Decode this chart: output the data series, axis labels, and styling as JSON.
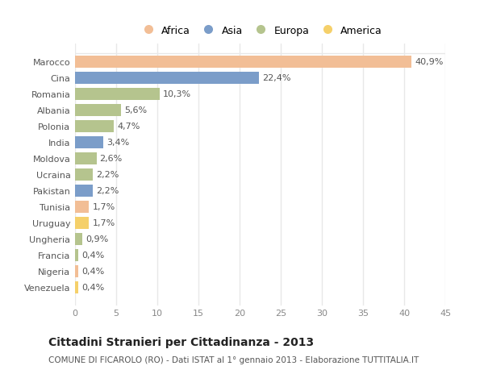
{
  "countries": [
    "Marocco",
    "Cina",
    "Romania",
    "Albania",
    "Polonia",
    "India",
    "Moldova",
    "Ucraina",
    "Pakistan",
    "Tunisia",
    "Uruguay",
    "Ungheria",
    "Francia",
    "Nigeria",
    "Venezuela"
  ],
  "values": [
    40.9,
    22.4,
    10.3,
    5.6,
    4.7,
    3.4,
    2.6,
    2.2,
    2.2,
    1.7,
    1.7,
    0.9,
    0.4,
    0.4,
    0.4
  ],
  "labels": [
    "40,9%",
    "22,4%",
    "10,3%",
    "5,6%",
    "4,7%",
    "3,4%",
    "2,6%",
    "2,2%",
    "2,2%",
    "1,7%",
    "1,7%",
    "0,9%",
    "0,4%",
    "0,4%",
    "0,4%"
  ],
  "colors": [
    "#f2be96",
    "#7b9dc9",
    "#b5c48e",
    "#b5c48e",
    "#b5c48e",
    "#7b9dc9",
    "#b5c48e",
    "#b5c48e",
    "#7b9dc9",
    "#f2be96",
    "#f5d06a",
    "#b5c48e",
    "#b5c48e",
    "#f2be96",
    "#f5d06a"
  ],
  "legend_labels": [
    "Africa",
    "Asia",
    "Europa",
    "America"
  ],
  "legend_colors": [
    "#f2be96",
    "#7b9dc9",
    "#b5c48e",
    "#f5d06a"
  ],
  "title": "Cittadini Stranieri per Cittadinanza - 2013",
  "subtitle": "COMUNE DI FICAROLO (RO) - Dati ISTAT al 1° gennaio 2013 - Elaborazione TUTTITALIA.IT",
  "xlim": [
    0,
    45
  ],
  "xticks": [
    0,
    5,
    10,
    15,
    20,
    25,
    30,
    35,
    40,
    45
  ],
  "background_color": "#ffffff",
  "grid_color": "#e8e8e8",
  "bar_height": 0.75,
  "label_fontsize": 8.0,
  "tick_fontsize": 8.0,
  "title_fontsize": 10.0,
  "subtitle_fontsize": 7.5
}
